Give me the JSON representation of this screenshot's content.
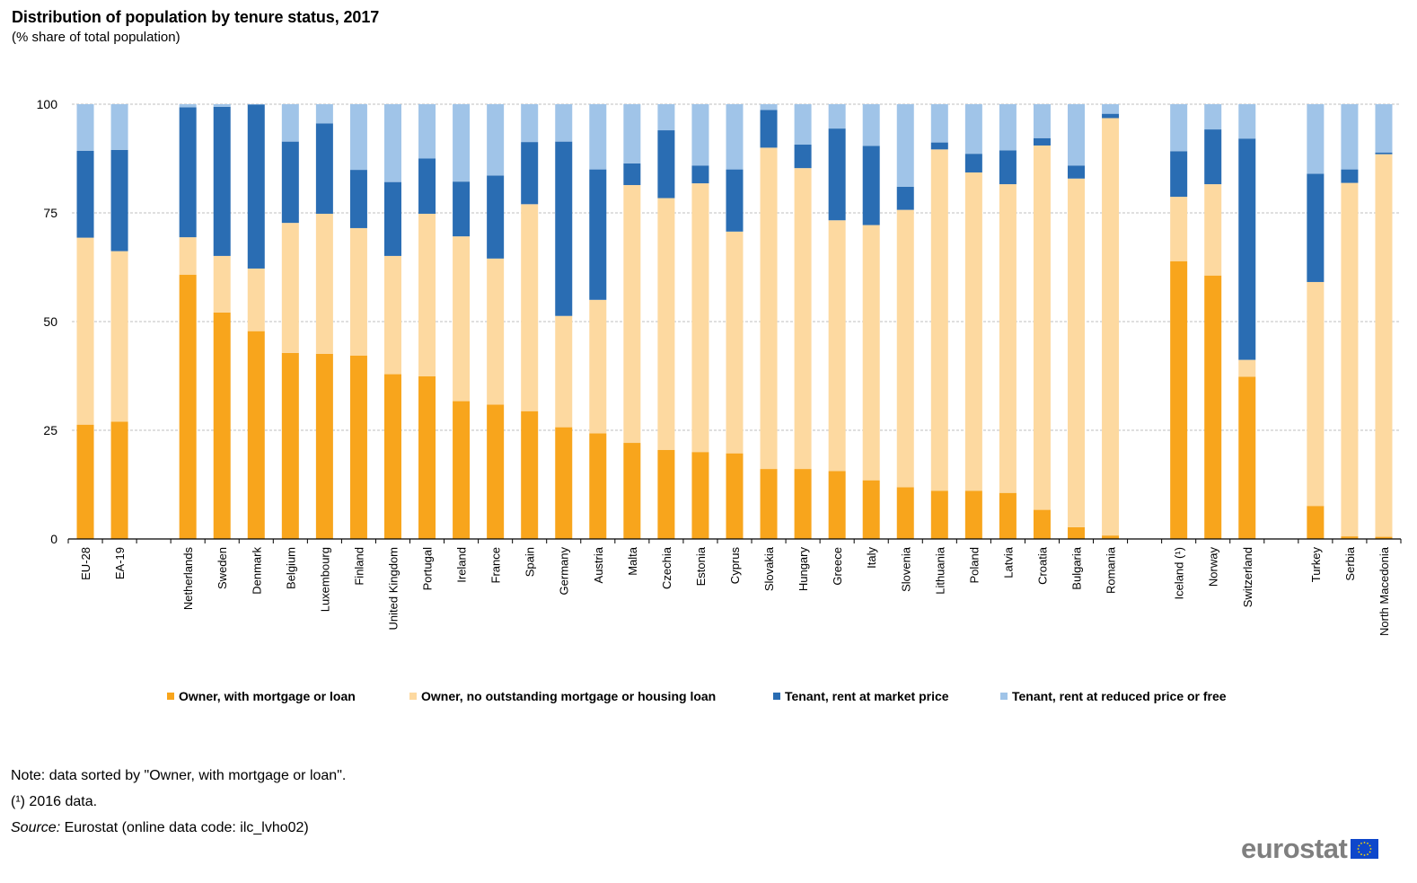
{
  "title": "Distribution of population by tenure status, 2017",
  "subtitle": "(% share of total population)",
  "notes": {
    "note": "Note: data sorted by \"Owner, with mortgage or loan\".",
    "footnote": "(¹) 2016 data.",
    "source_label": "Source:",
    "source_text": " Eurostat (online data code: ilc_lvho02)"
  },
  "logo": {
    "text": "eurostat",
    "flag_icon": "eu-flag-icon"
  },
  "colors": {
    "owner_mortgage": "#f8a51c",
    "owner_no_mortgage": "#fdd9a0",
    "tenant_market": "#2a6db3",
    "tenant_reduced": "#a0c4e8",
    "grid": "#bfbfbf"
  },
  "chart_data": {
    "type": "bar",
    "stacked": true,
    "title": "Distribution of population by tenure status, 2017",
    "subtitle": "(% share of total population)",
    "xlabel": "",
    "ylabel": "",
    "ylim": [
      0,
      100
    ],
    "yticks": [
      0,
      25,
      50,
      75,
      100
    ],
    "grid": true,
    "legend_position": "bottom",
    "categories": [
      "EU-28",
      "EA-19",
      "",
      "Netherlands",
      "Sweden",
      "Denmark",
      "Belgium",
      "Luxembourg",
      "Finland",
      "United Kingdom",
      "Portugal",
      "Ireland",
      "France",
      "Spain",
      "Germany",
      "Austria",
      "Malta",
      "Czechia",
      "Estonia",
      "Cyprus",
      "Slovakia",
      "Hungary",
      "Greece",
      "Italy",
      "Slovenia",
      "Lithuania",
      "Poland",
      "Latvia",
      "Croatia",
      "Bulgaria",
      "Romania",
      "",
      "Iceland (¹)",
      "Norway",
      "Switzerland",
      "",
      "Turkey",
      "Serbia",
      "North Macedonia"
    ],
    "series": [
      {
        "name": "Owner, with mortgage or loan",
        "key": "owner_mortgage",
        "values": [
          26.3,
          27.0,
          null,
          60.8,
          52.1,
          47.8,
          42.8,
          42.6,
          42.2,
          37.9,
          37.4,
          31.7,
          30.9,
          29.4,
          25.7,
          24.3,
          22.1,
          20.5,
          20.0,
          19.7,
          16.1,
          16.1,
          15.6,
          13.5,
          11.9,
          11.1,
          11.1,
          10.6,
          6.7,
          2.7,
          0.8,
          null,
          63.9,
          60.6,
          37.3,
          null,
          7.6,
          0.6,
          0.5
        ]
      },
      {
        "name": "Owner, no outstanding mortgage or housing loan",
        "key": "owner_no_mortgage",
        "values": [
          43.0,
          39.2,
          null,
          8.6,
          13.0,
          14.4,
          29.9,
          32.2,
          29.3,
          27.2,
          37.4,
          37.9,
          33.6,
          47.6,
          25.6,
          30.7,
          59.3,
          57.9,
          61.8,
          51.0,
          73.9,
          69.2,
          57.7,
          58.7,
          63.8,
          78.5,
          73.2,
          71.0,
          83.8,
          80.2,
          96.0,
          null,
          14.8,
          21.0,
          3.9,
          null,
          51.5,
          81.3,
          88.0
        ]
      },
      {
        "name": "Tenant, rent at market price",
        "key": "tenant_market",
        "values": [
          20.0,
          23.3,
          null,
          29.9,
          34.3,
          37.7,
          18.7,
          20.8,
          13.4,
          17.0,
          12.7,
          12.6,
          19.1,
          14.3,
          40.1,
          30.0,
          5.0,
          15.6,
          4.1,
          14.3,
          8.7,
          5.4,
          21.1,
          18.2,
          5.3,
          1.6,
          4.3,
          7.8,
          1.7,
          3.0,
          1.0,
          null,
          10.5,
          12.6,
          50.9,
          null,
          24.9,
          3.1,
          0.4
        ]
      },
      {
        "name": "Tenant, rent at reduced price or free",
        "key": "tenant_reduced",
        "values": [
          10.7,
          10.5,
          null,
          0.7,
          0.6,
          0.1,
          8.6,
          4.4,
          15.1,
          17.9,
          12.5,
          17.8,
          16.4,
          8.7,
          8.6,
          15.0,
          13.6,
          6.0,
          14.1,
          15.0,
          1.3,
          9.3,
          5.6,
          9.6,
          19.0,
          8.8,
          11.4,
          10.6,
          7.8,
          14.1,
          2.2,
          null,
          10.8,
          5.8,
          7.9,
          null,
          16.0,
          15.0,
          11.1
        ]
      }
    ]
  }
}
